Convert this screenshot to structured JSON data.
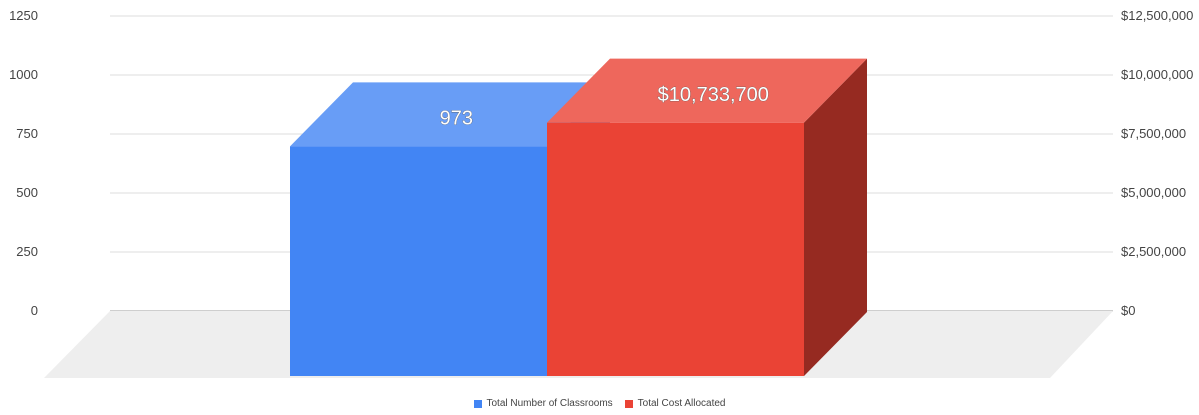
{
  "chart_data": {
    "type": "bar",
    "style": "3d",
    "grid": true,
    "legend_position": "bottom",
    "categories": [
      ""
    ],
    "series": [
      {
        "name": "Total Number of Classrooms",
        "axis": "left",
        "color": "#4285f4",
        "values": [
          973
        ],
        "data_labels": [
          "973"
        ]
      },
      {
        "name": "Total Cost Allocated",
        "axis": "right",
        "color": "#ea4335",
        "values": [
          10733700
        ],
        "data_labels": [
          "$10,733,700"
        ]
      }
    ],
    "y_left": {
      "ylim": [
        0,
        1250
      ],
      "ticks": [
        0,
        250,
        500,
        750,
        1000,
        1250
      ],
      "tick_labels": [
        "0",
        "250",
        "500",
        "750",
        "1000",
        "1250"
      ]
    },
    "y_right": {
      "ylim": [
        0,
        12500000
      ],
      "ticks": [
        0,
        2500000,
        5000000,
        7500000,
        10000000,
        12500000
      ],
      "tick_labels": [
        "$0",
        "$2,500,000",
        "$5,000,000",
        "$7,500,000",
        "$10,000,000",
        "$12,500,000"
      ]
    }
  }
}
